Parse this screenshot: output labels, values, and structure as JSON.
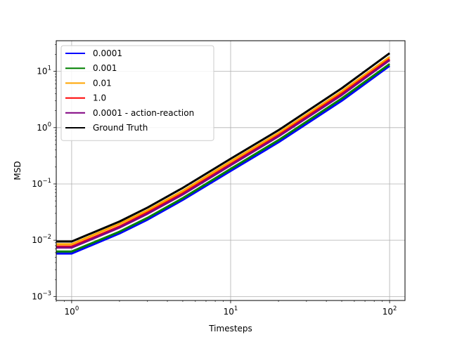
{
  "chart_data": {
    "type": "line",
    "xlabel": "Timesteps",
    "ylabel": "MSD",
    "xscale": "log",
    "yscale": "log",
    "xlim": [
      0.8,
      125
    ],
    "ylim": [
      0.00085,
      35
    ],
    "grid": true,
    "legend_position": "upper-left",
    "x_ticks": [
      {
        "value": 1,
        "base": "10",
        "exp": "0"
      },
      {
        "value": 10,
        "base": "10",
        "exp": "1"
      },
      {
        "value": 100,
        "base": "10",
        "exp": "2"
      }
    ],
    "y_ticks": [
      {
        "value": 0.001,
        "base": "10",
        "exp": "−3"
      },
      {
        "value": 0.01,
        "base": "10",
        "exp": "−2"
      },
      {
        "value": 0.1,
        "base": "10",
        "exp": "−1"
      },
      {
        "value": 1,
        "base": "10",
        "exp": "0"
      },
      {
        "value": 10,
        "base": "10",
        "exp": "1"
      }
    ],
    "x": [
      0.8,
      1,
      2,
      3,
      5,
      10,
      20,
      50,
      100
    ],
    "series": [
      {
        "name": "0.0001",
        "color": "#0000ff",
        "values": [
          0.0058,
          0.0058,
          0.0132,
          0.0232,
          0.052,
          0.17,
          0.55,
          3.0,
          12.5
        ]
      },
      {
        "name": "0.001",
        "color": "#008000",
        "values": [
          0.0063,
          0.0063,
          0.0142,
          0.025,
          0.056,
          0.185,
          0.6,
          3.3,
          13.5
        ]
      },
      {
        "name": "0.01",
        "color": "#ffa500",
        "values": [
          0.0085,
          0.0085,
          0.0195,
          0.034,
          0.075,
          0.25,
          0.8,
          4.4,
          18.0
        ]
      },
      {
        "name": "1.0",
        "color": "#ff0000",
        "values": [
          0.0077,
          0.0077,
          0.0175,
          0.031,
          0.068,
          0.225,
          0.73,
          4.0,
          16.5
        ]
      },
      {
        "name": "0.0001 - action-reaction",
        "color": "#800080",
        "values": [
          0.0074,
          0.0074,
          0.0168,
          0.0295,
          0.065,
          0.215,
          0.7,
          3.8,
          15.8
        ]
      },
      {
        "name": "Ground Truth",
        "color": "#000000",
        "values": [
          0.0095,
          0.0095,
          0.0215,
          0.038,
          0.085,
          0.28,
          0.9,
          5.0,
          21.0
        ]
      }
    ]
  }
}
